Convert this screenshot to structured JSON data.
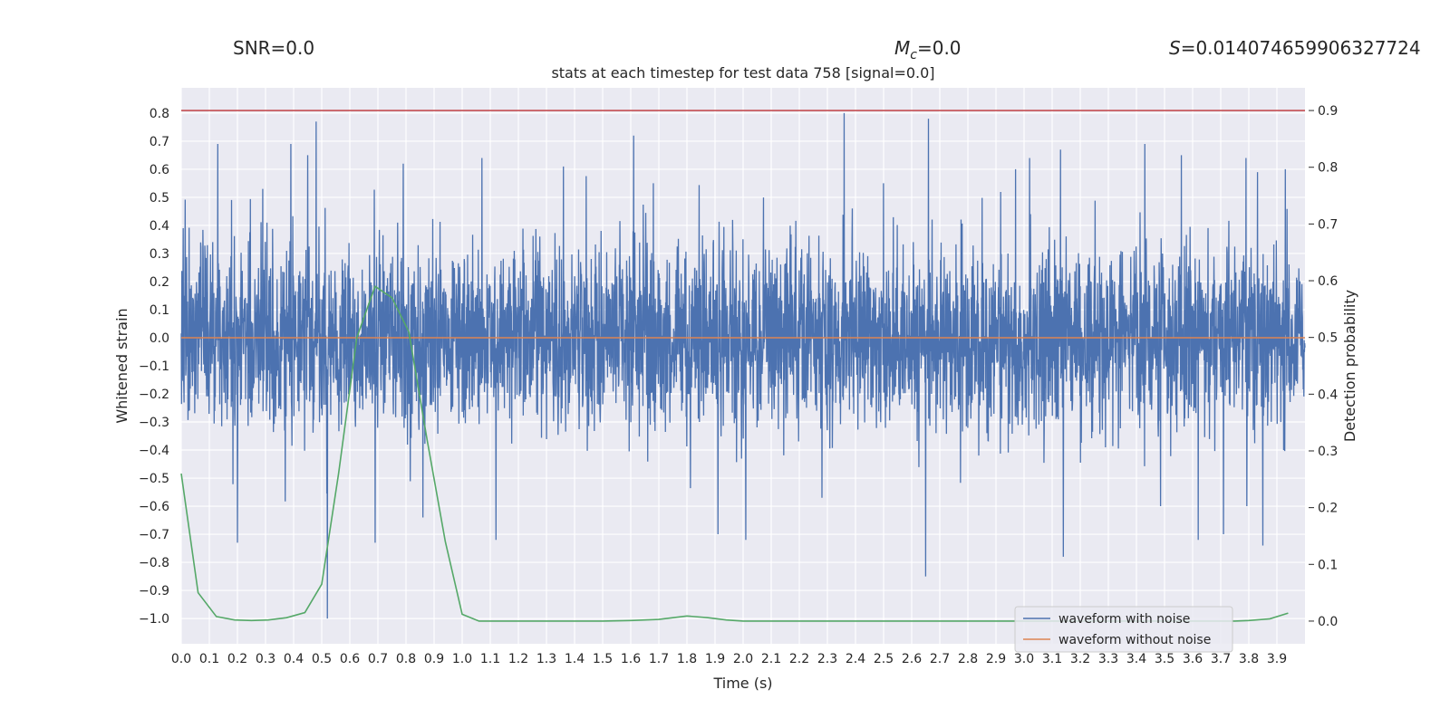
{
  "chart_data": {
    "type": "line",
    "title": "stats at each timestep for test data 758 [signal=0.0]",
    "header": {
      "snr": "SNR=0.0",
      "mc_symbol": "M",
      "mc_sub": "c",
      "mc_value": "=0.0",
      "s_symbol": "S",
      "s_value": "=0.014074659906327724"
    },
    "xlabel": "Time (s)",
    "ylabel": "Whitened strain",
    "y2label": "Detection probability",
    "xlim": [
      0.0,
      4.0
    ],
    "ylim": [
      -1.09,
      0.89
    ],
    "y2lim": [
      -0.04,
      0.94
    ],
    "xticks": [
      "0.0",
      "0.1",
      "0.2",
      "0.3",
      "0.4",
      "0.5",
      "0.6",
      "0.7",
      "0.8",
      "0.9",
      "1.0",
      "1.1",
      "1.2",
      "1.3",
      "1.4",
      "1.5",
      "1.6",
      "1.7",
      "1.8",
      "1.9",
      "2.0",
      "2.1",
      "2.2",
      "2.3",
      "2.4",
      "2.5",
      "2.6",
      "2.7",
      "2.8",
      "2.9",
      "3.0",
      "3.1",
      "3.2",
      "3.3",
      "3.4",
      "3.5",
      "3.6",
      "3.7",
      "3.8",
      "3.9"
    ],
    "yticks": [
      "0.8",
      "0.7",
      "0.6",
      "0.5",
      "0.4",
      "0.3",
      "0.2",
      "0.1",
      "0.0",
      "-0.1",
      "-0.2",
      "-0.3",
      "-0.4",
      "-0.5",
      "-0.6",
      "-0.7",
      "-0.8",
      "-0.9",
      "-1.0"
    ],
    "y2ticks": [
      "0.9",
      "0.8",
      "0.7",
      "0.6",
      "0.5",
      "0.4",
      "0.3",
      "0.2",
      "0.1",
      "0.0"
    ],
    "grid": true,
    "legend_position": "lower-right",
    "series": [
      {
        "name": "waveform with noise",
        "color": "#4c72b0",
        "axis": "left",
        "kind": "noisy",
        "envelope_std": 0.22,
        "peaks": [
          [
            0.13,
            0.69
          ],
          [
            0.2,
            0.59
          ],
          [
            0.2,
            -0.73
          ],
          [
            0.29,
            0.53
          ],
          [
            0.39,
            0.69
          ],
          [
            0.45,
            0.65
          ],
          [
            0.48,
            0.77
          ],
          [
            0.52,
            -1.0
          ],
          [
            0.69,
            -0.73
          ],
          [
            0.79,
            0.62
          ],
          [
            0.86,
            -0.64
          ],
          [
            1.07,
            0.64
          ],
          [
            1.12,
            -0.72
          ],
          [
            1.36,
            0.61
          ],
          [
            1.61,
            0.72
          ],
          [
            1.68,
            0.55
          ],
          [
            1.91,
            -0.7
          ],
          [
            2.01,
            -0.72
          ],
          [
            2.36,
            0.8
          ],
          [
            2.5,
            0.55
          ],
          [
            2.65,
            -0.85
          ],
          [
            2.66,
            0.78
          ],
          [
            2.97,
            0.6
          ],
          [
            3.02,
            0.64
          ],
          [
            3.13,
            0.67
          ],
          [
            3.14,
            -0.78
          ],
          [
            3.43,
            0.69
          ],
          [
            3.56,
            0.65
          ],
          [
            3.62,
            -0.72
          ],
          [
            3.71,
            -0.7
          ],
          [
            3.79,
            0.64
          ],
          [
            3.85,
            -0.74
          ],
          [
            3.93,
            0.6
          ]
        ]
      },
      {
        "name": "waveform without noise",
        "color": "#dd8452",
        "axis": "left",
        "x": [
          0.0,
          4.0
        ],
        "y": [
          0.0,
          0.0
        ]
      },
      {
        "color": "#55a868",
        "axis": "right",
        "x": [
          0.0,
          0.06,
          0.125,
          0.19,
          0.25,
          0.31,
          0.375,
          0.44,
          0.5,
          0.56,
          0.625,
          0.69,
          0.75,
          0.81,
          0.875,
          0.94,
          1.0,
          1.06,
          1.25,
          1.5,
          1.6,
          1.7,
          1.75,
          1.8,
          1.875,
          1.94,
          2.0,
          2.5,
          3.0,
          3.5,
          3.75,
          3.8,
          3.875,
          3.94
        ],
        "y": [
          0.26,
          0.05,
          0.008,
          0.002,
          0.001,
          0.002,
          0.006,
          0.015,
          0.065,
          0.26,
          0.5,
          0.59,
          0.57,
          0.51,
          0.32,
          0.14,
          0.012,
          0.0,
          0.0,
          0.0,
          0.001,
          0.003,
          0.006,
          0.009,
          0.006,
          0.002,
          0.0,
          0.0,
          0.0,
          0.0,
          0.0,
          0.001,
          0.004,
          0.014
        ]
      },
      {
        "color": "#c44e52",
        "axis": "right",
        "x": [
          0.0,
          4.0
        ],
        "y": [
          0.9,
          0.9
        ]
      }
    ]
  }
}
